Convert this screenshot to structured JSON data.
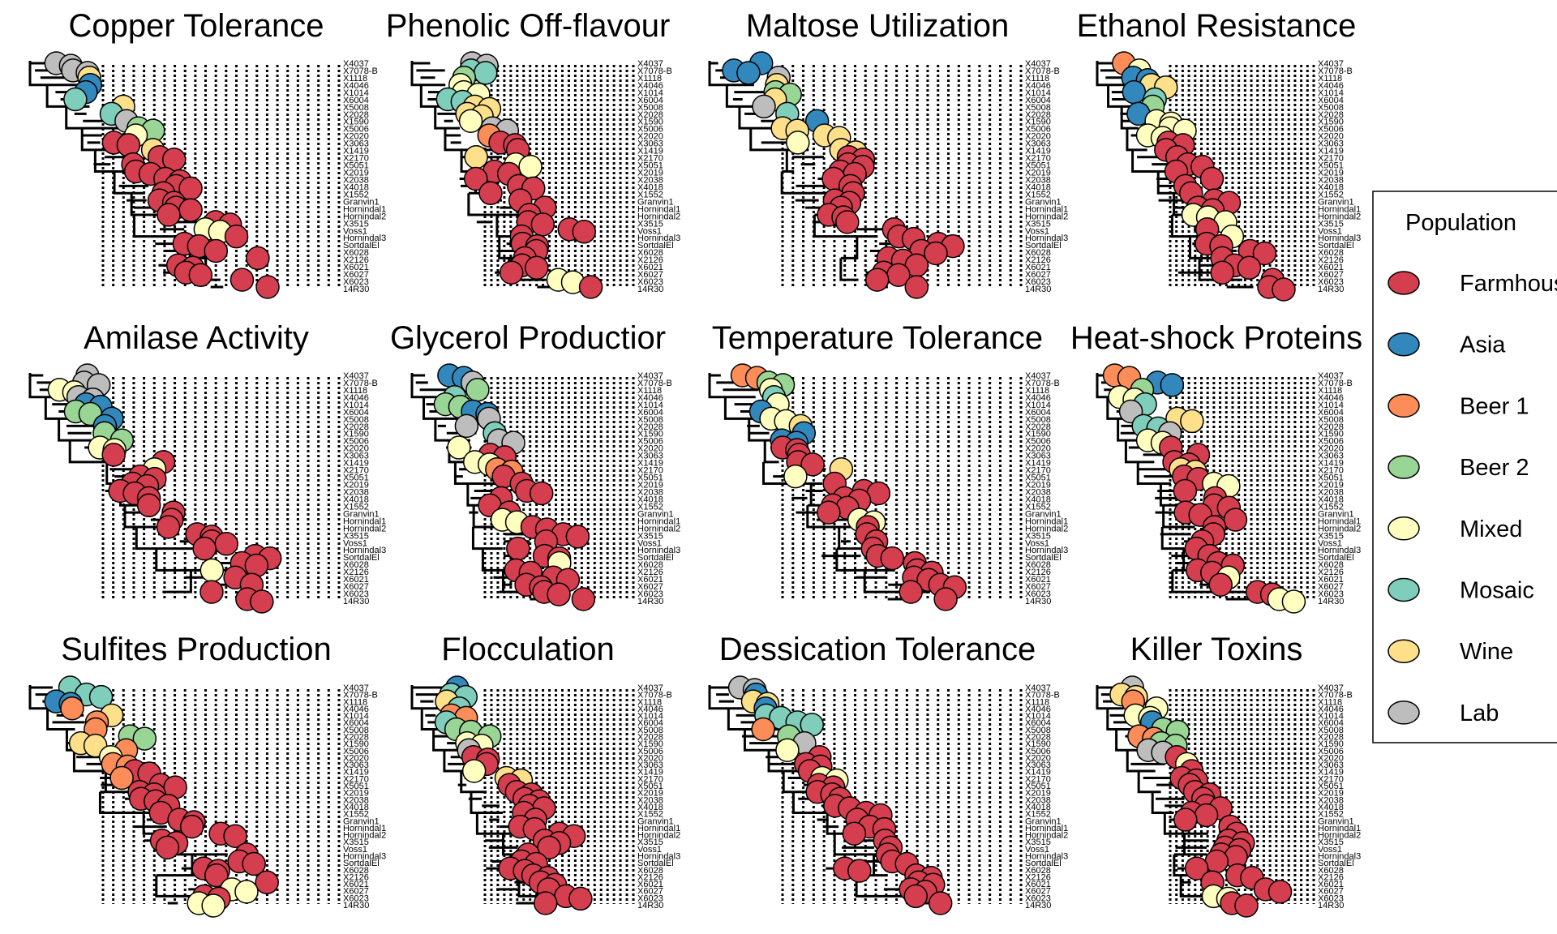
{
  "chart_data": {
    "type": "scatter",
    "description_kind": "phylogenetic trees with tip points colored by population",
    "panels": [
      {
        "title": "Copper Tolerance"
      },
      {
        "title": "Phenolic Off-flavour"
      },
      {
        "title": "Maltose Utilization"
      },
      {
        "title": "Ethanol Resistance"
      },
      {
        "title": "Amilase Activity"
      },
      {
        "title": "Glycerol Productior"
      },
      {
        "title": "Temperature Tolerance"
      },
      {
        "title": "Heat-shock Proteins"
      },
      {
        "title": "Sulfites Production"
      },
      {
        "title": "Flocculation"
      },
      {
        "title": "Dessication Tolerance"
      },
      {
        "title": "Killer Toxins"
      }
    ],
    "tip_labels": [
      "X4037",
      "X7078-B",
      "X1118",
      "X4046",
      "X1014",
      "X6004",
      "X5008",
      "X2028",
      "X1590",
      "X5006",
      "X2020",
      "X3063",
      "X1419",
      "X2170",
      "X5051",
      "X2019",
      "X2038",
      "X4018",
      "X1552",
      "Granvin1",
      "Hornindal1",
      "Hornindal2",
      "X3515",
      "Voss1",
      "Hornindal3",
      "SortdalEl",
      "X6028",
      "X2126",
      "X6021",
      "X6027",
      "X6023",
      "14R30"
    ],
    "legend": {
      "title": "Population",
      "placement": "right",
      "entries": [
        {
          "label": "Farmhouse",
          "color": "#D53E4F"
        },
        {
          "label": "Asia",
          "color": "#3288BD"
        },
        {
          "label": "Beer 1",
          "color": "#FC8D59"
        },
        {
          "label": "Beer 2",
          "color": "#99D594"
        },
        {
          "label": "Mixed",
          "color": "#FFFFBF"
        },
        {
          "label": "Mosaic",
          "color": "#7FCDBB"
        },
        {
          "label": "Wine",
          "color": "#FEE08B"
        },
        {
          "label": "Lab",
          "color": "#BDBDBD"
        }
      ]
    }
  }
}
